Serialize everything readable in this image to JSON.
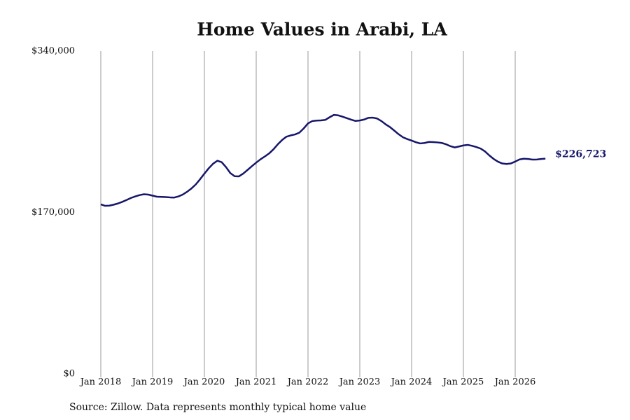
{
  "chart_data": {
    "type": "line",
    "title": "Home Values in Arabi, LA",
    "source": "Source: Zillow. Data represents monthly typical home value",
    "x": [
      "2018-01",
      "2018-02",
      "2018-03",
      "2018-04",
      "2018-05",
      "2018-06",
      "2018-07",
      "2018-08",
      "2018-09",
      "2018-10",
      "2018-11",
      "2018-12",
      "2019-01",
      "2019-02",
      "2019-03",
      "2019-04",
      "2019-05",
      "2019-06",
      "2019-07",
      "2019-08",
      "2019-09",
      "2019-10",
      "2019-11",
      "2019-12",
      "2020-01",
      "2020-02",
      "2020-03",
      "2020-04",
      "2020-05",
      "2020-06",
      "2020-07",
      "2020-08",
      "2020-09",
      "2020-10",
      "2020-11",
      "2020-12",
      "2021-01",
      "2021-02",
      "2021-03",
      "2021-04",
      "2021-05",
      "2021-06",
      "2021-07",
      "2021-08",
      "2021-09",
      "2021-10",
      "2021-11",
      "2021-12",
      "2022-01",
      "2022-02",
      "2022-03",
      "2022-04",
      "2022-05",
      "2022-06",
      "2022-07",
      "2022-08",
      "2022-09",
      "2022-10",
      "2022-11",
      "2022-12",
      "2023-01",
      "2023-02",
      "2023-03",
      "2023-04",
      "2023-05",
      "2023-06",
      "2023-07",
      "2023-08",
      "2023-09",
      "2023-10",
      "2023-11",
      "2023-12",
      "2024-01",
      "2024-02",
      "2024-03",
      "2024-04",
      "2024-05",
      "2024-06",
      "2024-07",
      "2024-08",
      "2024-09",
      "2024-10",
      "2024-11",
      "2024-12",
      "2025-01",
      "2025-02",
      "2025-03",
      "2025-04",
      "2025-05",
      "2025-06",
      "2025-07",
      "2025-08",
      "2025-09",
      "2025-10",
      "2025-11",
      "2025-12",
      "2026-01",
      "2026-02",
      "2026-03",
      "2026-04",
      "2026-05",
      "2026-06",
      "2026-07",
      "2026-08"
    ],
    "series": [
      {
        "name": "Home value",
        "color": "#16166a",
        "values": [
          178500,
          177000,
          177200,
          178200,
          179500,
          181200,
          183200,
          185300,
          186900,
          188300,
          189200,
          188800,
          187700,
          186600,
          186400,
          186200,
          185900,
          185700,
          186900,
          188900,
          191800,
          195300,
          199500,
          205000,
          210900,
          216500,
          221300,
          224500,
          223000,
          217800,
          211500,
          208200,
          208000,
          211000,
          214800,
          218700,
          222500,
          226000,
          229000,
          232200,
          236500,
          241800,
          246300,
          249800,
          251200,
          252200,
          254100,
          258500,
          263800,
          266300,
          266800,
          267000,
          267500,
          270300,
          272800,
          272300,
          270900,
          269300,
          267800,
          266400,
          266900,
          267900,
          269700,
          269900,
          269000,
          266300,
          262800,
          259900,
          256200,
          252400,
          249200,
          247300,
          245700,
          244000,
          242700,
          243200,
          244300,
          244100,
          243800,
          243200,
          241800,
          239800,
          238500,
          239500,
          240600,
          241200,
          240200,
          238900,
          237300,
          234300,
          230100,
          226400,
          223500,
          221600,
          221100,
          221600,
          223600,
          225900,
          226600,
          226300,
          225700,
          225800,
          226300,
          226723
        ],
        "value_labels": [
          null,
          null,
          null,
          null,
          null,
          null,
          null,
          null,
          null,
          null,
          null,
          null,
          null,
          null,
          null,
          null,
          null,
          null,
          null,
          null,
          null,
          null,
          null,
          null,
          null,
          null,
          null,
          null,
          null,
          null,
          null,
          null,
          null,
          null,
          null,
          null,
          null,
          null,
          null,
          null,
          null,
          null,
          null,
          null,
          null,
          null,
          null,
          null,
          null,
          null,
          null,
          null,
          null,
          null,
          null,
          null,
          null,
          null,
          null,
          null,
          null,
          null,
          null,
          null,
          null,
          null,
          null,
          null,
          null,
          null,
          null,
          null,
          null,
          null,
          null,
          null,
          null,
          null,
          null,
          null,
          null,
          null,
          null,
          null,
          null,
          null,
          null,
          null,
          null,
          null,
          null,
          null,
          null,
          null,
          null,
          null,
          null,
          null,
          null,
          null,
          null,
          null,
          null,
          "$226,723"
        ]
      }
    ],
    "xlim": [
      "2018-01",
      "2027-01"
    ],
    "xticks": [
      {
        "value": "2018-01",
        "label": "Jan 2018"
      },
      {
        "value": "2019-01",
        "label": "Jan 2019"
      },
      {
        "value": "2020-01",
        "label": "Jan 2020"
      },
      {
        "value": "2021-01",
        "label": "Jan 2021"
      },
      {
        "value": "2022-01",
        "label": "Jan 2022"
      },
      {
        "value": "2023-01",
        "label": "Jan 2023"
      },
      {
        "value": "2024-01",
        "label": "Jan 2024"
      },
      {
        "value": "2025-01",
        "label": "Jan 2025"
      },
      {
        "value": "2026-01",
        "label": "Jan 2026"
      }
    ],
    "ylim": [
      0,
      340000
    ],
    "yticks": [
      {
        "value": 0,
        "label": "$0"
      },
      {
        "value": 170000,
        "label": "$170,000"
      },
      {
        "value": 340000,
        "label": "$340,000"
      }
    ],
    "grid": "x"
  }
}
